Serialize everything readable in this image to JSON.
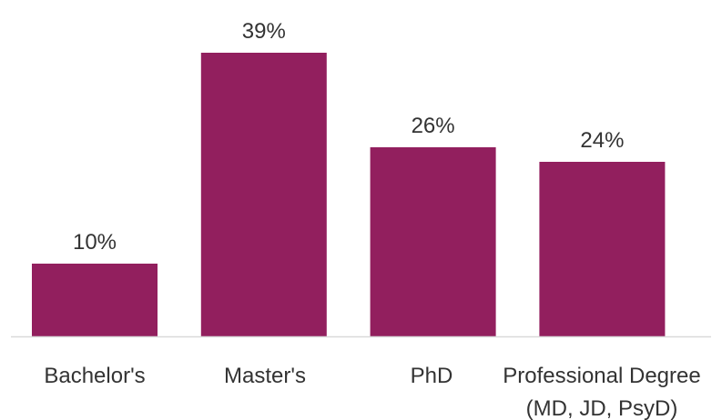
{
  "chart_data": {
    "type": "bar",
    "title": "",
    "xlabel": "",
    "ylabel": "",
    "categories": [
      [
        "Bachelor's"
      ],
      [
        "Master's"
      ],
      [
        "PhD"
      ],
      [
        "Professional Degree",
        "(MD, JD, PsyD)"
      ]
    ],
    "values": [
      10,
      39,
      26,
      24
    ],
    "value_labels": [
      "10%",
      "39%",
      "26%",
      "24%"
    ],
    "unit": "%",
    "ylim": [
      0,
      40
    ],
    "grid": false,
    "legend": "none",
    "bar_color": "#921F5E",
    "axis_color": "#D9D9D9",
    "label_color": "#333333"
  }
}
